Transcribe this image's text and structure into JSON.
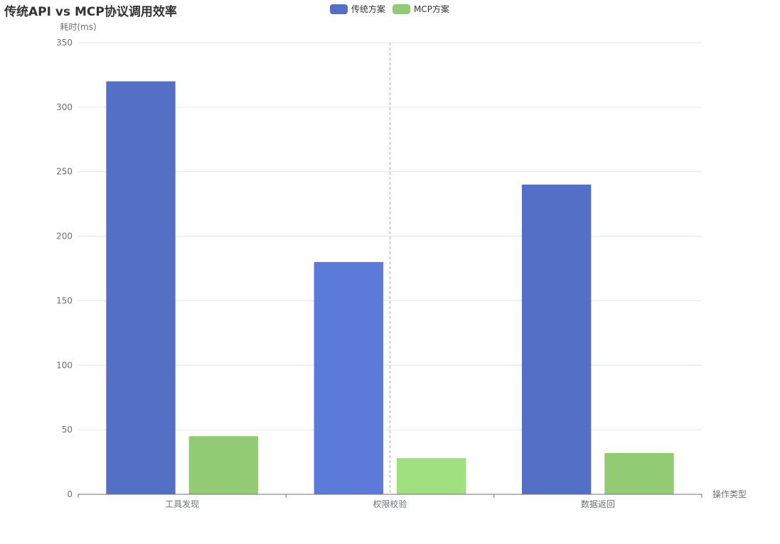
{
  "chart_data": {
    "type": "bar",
    "title": "传统API vs MCP协议调用效率",
    "xlabel": "操作类型",
    "ylabel": "耗时(ms)",
    "categories": [
      "工具发现",
      "权限校验",
      "数据返回"
    ],
    "series": [
      {
        "name": "传统方案",
        "values": [
          320,
          180,
          240
        ],
        "color": "#5470c6"
      },
      {
        "name": "MCP方案",
        "values": [
          45,
          28,
          32
        ],
        "color": "#91cc75"
      }
    ],
    "ylim": [
      0,
      350
    ],
    "yticks": [
      0,
      50,
      100,
      150,
      200,
      250,
      300,
      350
    ],
    "grid": true,
    "legend_position": "top-center",
    "highlighted_category": "权限校验",
    "highlight_colors": [
      "#5b7ad9",
      "#a0e07f"
    ]
  }
}
